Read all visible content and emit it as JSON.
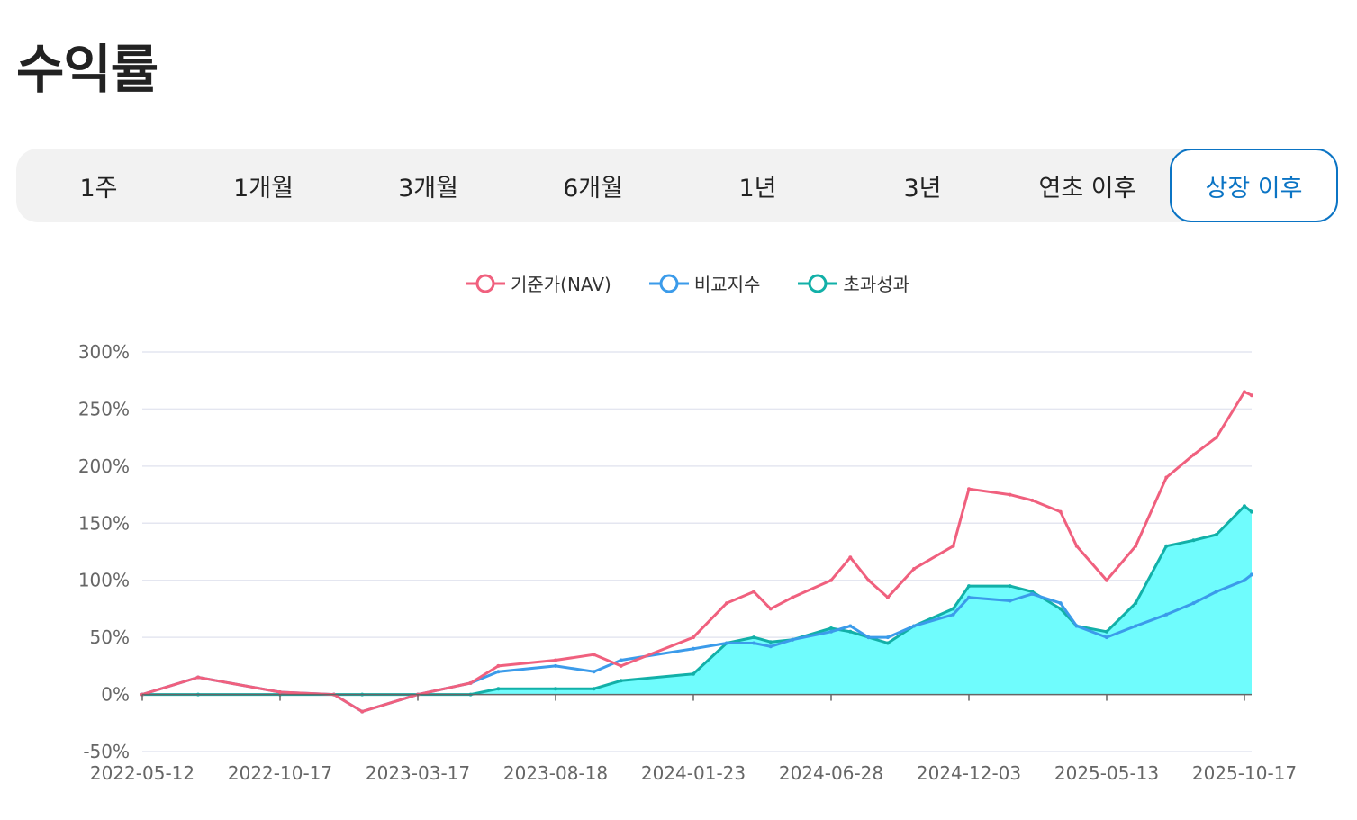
{
  "page": {
    "title": "수익률"
  },
  "tabs": [
    {
      "label": "1주",
      "active": false
    },
    {
      "label": "1개월",
      "active": false
    },
    {
      "label": "3개월",
      "active": false
    },
    {
      "label": "6개월",
      "active": false
    },
    {
      "label": "1년",
      "active": false
    },
    {
      "label": "3년",
      "active": false
    },
    {
      "label": "연초 이후",
      "active": false
    },
    {
      "label": "상장 이후",
      "active": true
    }
  ],
  "colors": {
    "nav": "#f0607e",
    "benchmark": "#3b9bea",
    "excess": "#12b0a8",
    "excess_fill": "#6ffcfd",
    "accent": "#0b74c4"
  },
  "chart_data": {
    "type": "line",
    "title": "",
    "xlabel": "",
    "ylabel": "",
    "x_tick_labels": [
      "2022-05-12",
      "2022-10-17",
      "2023-03-17",
      "2023-08-18",
      "2024-01-23",
      "2024-06-28",
      "2024-12-03",
      "2025-05-13",
      "2025-10-17"
    ],
    "y_tick_labels": [
      "300%",
      "250%",
      "200%",
      "150%",
      "100%",
      "50%",
      "0%",
      "-50%"
    ],
    "ylim": [
      -50,
      300
    ],
    "grid": true,
    "legend_position": "top-center",
    "series": [
      {
        "name": "기준가(NAV)",
        "color": "#f0607e",
        "area": false,
        "x": [
          "2022-05-12",
          "2022-07-15",
          "2022-10-17",
          "2022-12-15",
          "2023-01-15",
          "2023-03-17",
          "2023-05-15",
          "2023-06-15",
          "2023-08-18",
          "2023-10-01",
          "2023-11-01",
          "2024-01-23",
          "2024-03-01",
          "2024-04-01",
          "2024-04-20",
          "2024-05-15",
          "2024-06-28",
          "2024-07-20",
          "2024-08-10",
          "2024-09-01",
          "2024-10-01",
          "2024-11-15",
          "2024-12-03",
          "2025-01-20",
          "2025-02-15",
          "2025-03-20",
          "2025-04-08",
          "2025-05-13",
          "2025-06-15",
          "2025-07-20",
          "2025-08-20",
          "2025-09-15",
          "2025-10-17",
          "2025-11-01"
        ],
        "values": [
          0,
          15,
          2,
          0,
          -15,
          0,
          10,
          25,
          30,
          35,
          25,
          50,
          80,
          90,
          75,
          85,
          100,
          120,
          100,
          85,
          110,
          130,
          180,
          175,
          170,
          160,
          130,
          100,
          130,
          190,
          210,
          225,
          265,
          262
        ]
      },
      {
        "name": "비교지수",
        "color": "#3b9bea",
        "area": false,
        "x": [
          "2022-05-12",
          "2022-07-15",
          "2022-10-17",
          "2022-12-15",
          "2023-01-15",
          "2023-03-17",
          "2023-05-15",
          "2023-06-15",
          "2023-08-18",
          "2023-10-01",
          "2023-11-01",
          "2024-01-23",
          "2024-03-01",
          "2024-04-01",
          "2024-04-20",
          "2024-05-15",
          "2024-06-28",
          "2024-07-20",
          "2024-08-10",
          "2024-09-01",
          "2024-10-01",
          "2024-11-15",
          "2024-12-03",
          "2025-01-20",
          "2025-02-15",
          "2025-03-20",
          "2025-04-08",
          "2025-05-13",
          "2025-06-15",
          "2025-07-20",
          "2025-08-20",
          "2025-09-15",
          "2025-10-17",
          "2025-11-01"
        ],
        "values": [
          0,
          15,
          2,
          0,
          -15,
          0,
          10,
          20,
          25,
          20,
          30,
          40,
          45,
          45,
          42,
          48,
          55,
          60,
          50,
          50,
          60,
          70,
          85,
          82,
          88,
          80,
          60,
          50,
          60,
          70,
          80,
          90,
          100,
          105
        ]
      },
      {
        "name": "초과성과",
        "color": "#12b0a8",
        "area": true,
        "x": [
          "2022-05-12",
          "2022-07-15",
          "2022-10-17",
          "2022-12-15",
          "2023-01-15",
          "2023-03-17",
          "2023-05-15",
          "2023-06-15",
          "2023-08-18",
          "2023-10-01",
          "2023-11-01",
          "2024-01-23",
          "2024-03-01",
          "2024-04-01",
          "2024-04-20",
          "2024-05-15",
          "2024-06-28",
          "2024-07-20",
          "2024-08-10",
          "2024-09-01",
          "2024-10-01",
          "2024-11-15",
          "2024-12-03",
          "2025-01-20",
          "2025-02-15",
          "2025-03-20",
          "2025-04-08",
          "2025-05-13",
          "2025-06-15",
          "2025-07-20",
          "2025-08-20",
          "2025-09-15",
          "2025-10-17",
          "2025-11-01"
        ],
        "values": [
          0,
          0,
          0,
          0,
          0,
          0,
          0,
          5,
          5,
          5,
          12,
          18,
          45,
          50,
          46,
          48,
          58,
          55,
          50,
          45,
          60,
          75,
          95,
          95,
          90,
          75,
          60,
          55,
          80,
          130,
          135,
          140,
          165,
          160
        ]
      }
    ]
  }
}
